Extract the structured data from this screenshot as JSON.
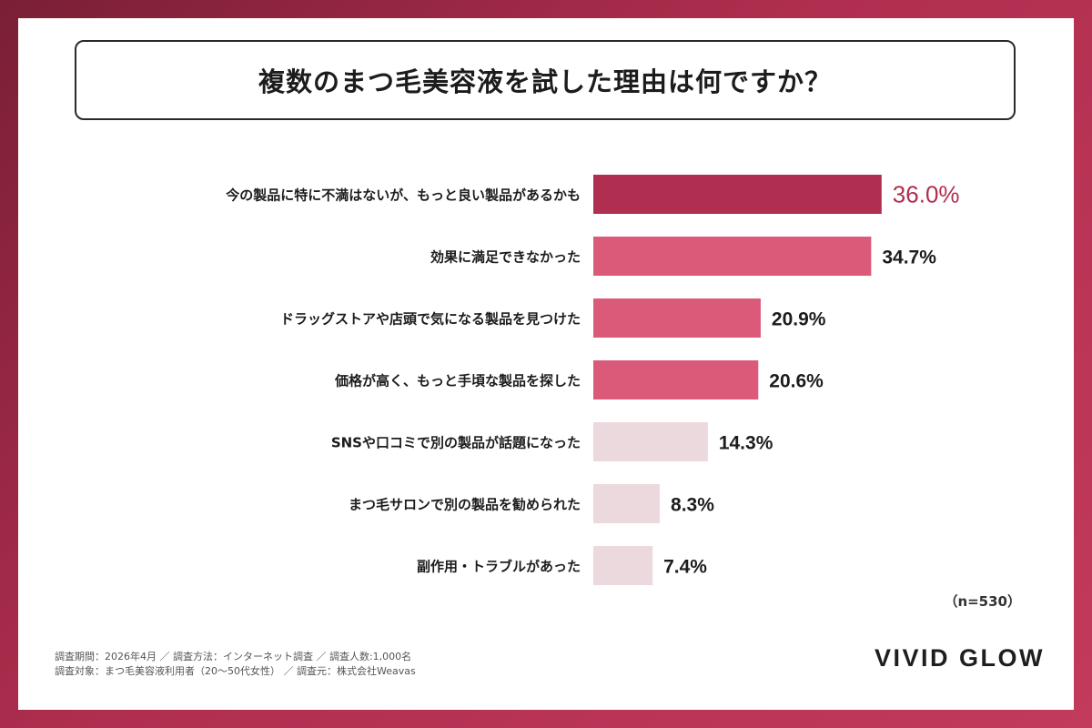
{
  "title": "複数のまつ毛美容液を試した理由は何ですか？",
  "sample_note": "（n=530）",
  "footnote": {
    "line1": "調査期間：2026年4月 ／ 調査方法：インターネット調査 ／ 調査人数:1,000名",
    "line2": "調査対象：まつ毛美容液利用者（20〜50代女性） ／ 調査元：株式会社Weavas"
  },
  "brand": "VIVID GLOW",
  "colors": {
    "top": "#b02e4f",
    "high": "#db5a79",
    "low": "#ecd9de",
    "accent_text": "#b02e4f",
    "text": "#1c1c1c"
  },
  "chart_data": {
    "type": "bar",
    "orientation": "horizontal",
    "categories": [
      "今の製品に特に不満はないが、もっと良い製品があるかも",
      "効果に満足できなかった",
      "ドラッグストアや店頭で気になる製品を見つけた",
      "価格が高く、もっと手頃な製品を探した",
      "SNSや口コミで別の製品が話題になった",
      "まつ毛サロンで別の製品を勧められた",
      "副作用・トラブルがあった"
    ],
    "values": [
      36.0,
      34.7,
      20.9,
      20.6,
      14.3,
      8.3,
      7.4
    ],
    "value_labels": [
      "36.0%",
      "34.7%",
      "20.9%",
      "20.6%",
      "14.3%",
      "8.3%",
      "7.4%"
    ],
    "color_groups": [
      "top",
      "high",
      "high",
      "high",
      "low",
      "low",
      "low"
    ],
    "xlim": [
      0,
      40
    ],
    "grid": false,
    "legend": "none"
  }
}
